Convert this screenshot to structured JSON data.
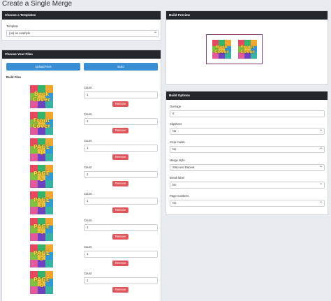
{
  "page": {
    "title": "Create a Single Merge"
  },
  "templates_card": {
    "header": "Choose a Templates",
    "template_label": "Template",
    "template_value": "(us) an example"
  },
  "files_card": {
    "header": "Choose Your Files",
    "upload_label": "Upload Files",
    "build_label": "Build",
    "build_files_label": "Build Files",
    "files": [
      {
        "thumb_line1": "Back",
        "thumb_line2": "Cover",
        "count_label": "Count",
        "count": "1",
        "remove_label": "Remove"
      },
      {
        "thumb_line1": "Front",
        "thumb_line2": "Cover",
        "count_label": "Count",
        "count": "1",
        "remove_label": "Remove"
      },
      {
        "thumb_line1": "PAGE",
        "thumb_line2": "1",
        "count_label": "Count",
        "count": "1",
        "remove_label": "Remove"
      },
      {
        "thumb_line1": "PAGE",
        "thumb_line2": "2",
        "count_label": "Count",
        "count": "1",
        "remove_label": "Remove"
      },
      {
        "thumb_line1": "PAGE",
        "thumb_line2": "3",
        "count_label": "Count",
        "count": "1",
        "remove_label": "Remove"
      },
      {
        "thumb_line1": "PAGE",
        "thumb_line2": "4",
        "count_label": "Count",
        "count": "1",
        "remove_label": "Remove"
      },
      {
        "thumb_line1": "PAGE",
        "thumb_line2": "5",
        "count_label": "Count",
        "count": "1",
        "remove_label": "Remove"
      },
      {
        "thumb_line1": "PAGE",
        "thumb_line2": "6",
        "count_label": "Count",
        "count": "1",
        "remove_label": "Remove"
      }
    ]
  },
  "preview_card": {
    "header": "Build Preview",
    "pages": [
      {
        "line1": "Back",
        "line2": "Cover"
      },
      {
        "line1": "Front",
        "line2": "Cover"
      }
    ]
  },
  "options_card": {
    "header": "Build Options",
    "overage_label": "Overage",
    "overage_value": "0",
    "slipsheet_label": "Slipsheet",
    "slipsheet_value": "No",
    "crop_label": "Crop marks",
    "crop_value": "No",
    "merge_label": "Merge style",
    "merge_value": "Step and Repeat",
    "break_label": "Break label",
    "break_value": "No",
    "page_numbers_label": "Page numbers",
    "page_numbers_value": "No"
  },
  "colors": {
    "header_bg": "#23272b",
    "primary": "#3a8ed4",
    "danger": "#e0555a",
    "tile_palette": [
      "#e8475f",
      "#35b56b",
      "#f2a62e",
      "#7fc142",
      "#f0c33c",
      "#2e9ad6",
      "#e25a9d",
      "#6f42c1",
      "#38b2a3"
    ]
  }
}
